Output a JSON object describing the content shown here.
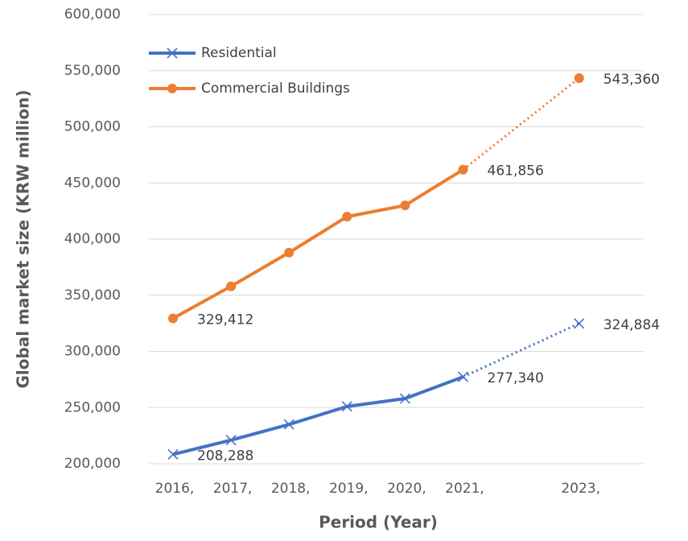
{
  "chart_data": {
    "type": "line",
    "x_label": "Period (Year)",
    "y_label": "Global market size (KRW million)",
    "categories": [
      "2016,",
      "2017,",
      "2018,",
      "2019,",
      "2020,",
      "2021,",
      null,
      "2023,"
    ],
    "series": [
      {
        "name": "Residential",
        "color": "#4472c4",
        "marker": "x",
        "values": [
          208288,
          221000,
          235000,
          251000,
          258000,
          277340,
          null,
          324884
        ],
        "value_labels": [
          "208,288",
          null,
          null,
          null,
          null,
          "277,340",
          null,
          "324,884"
        ]
      },
      {
        "name": "Commercial Buildings",
        "color": "#ed7d31",
        "marker": "circle",
        "values": [
          329412,
          358000,
          388000,
          420000,
          430000,
          461856,
          null,
          543360
        ],
        "value_labels": [
          "329,412",
          null,
          null,
          null,
          null,
          "461,856",
          null,
          "543,360"
        ]
      }
    ],
    "ylim": [
      200000,
      600000
    ],
    "yticks": [
      {
        "value": 200000,
        "label": "200,000"
      },
      {
        "value": 250000,
        "label": "250,000"
      },
      {
        "value": 300000,
        "label": "300,000"
      },
      {
        "value": 350000,
        "label": "350,000"
      },
      {
        "value": 400000,
        "label": "400,000"
      },
      {
        "value": 450000,
        "label": "450,000"
      },
      {
        "value": 500000,
        "label": "500,000"
      },
      {
        "value": 550000,
        "label": "550,000"
      },
      {
        "value": 600000,
        "label": "600,000"
      }
    ],
    "grid": true,
    "legend": "top-left"
  }
}
